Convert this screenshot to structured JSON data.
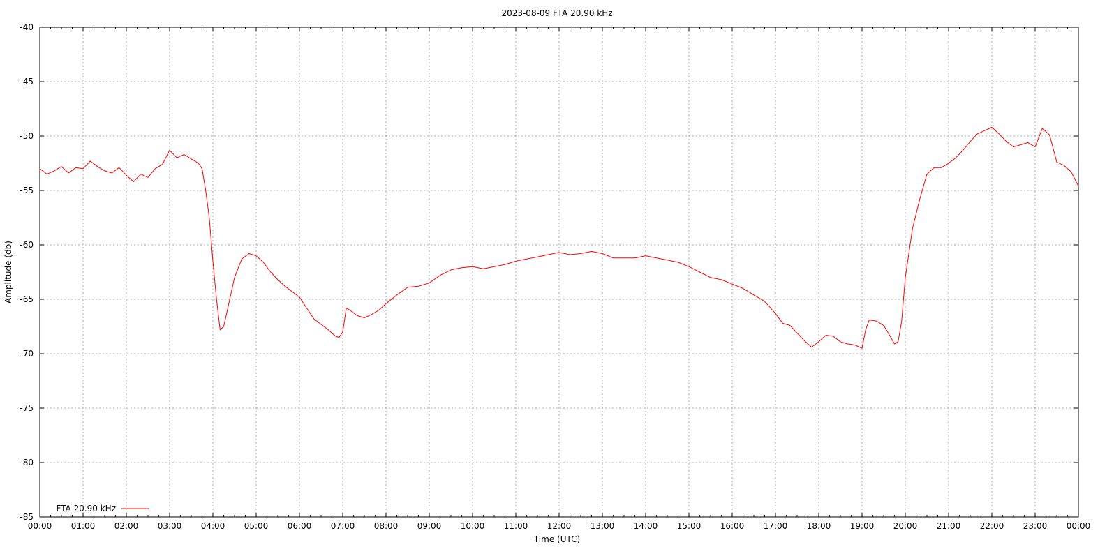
{
  "chart_data": {
    "type": "line",
    "title": "2023-08-09 FTA 20.90 kHz",
    "xlabel": "Time (UTC)",
    "ylabel": "Amplitude (db)",
    "xlim": [
      0,
      24
    ],
    "ylim": [
      -85,
      -40
    ],
    "grid": true,
    "legend_position": "bottom-left",
    "x_tick_labels": [
      "00:00",
      "01:00",
      "02:00",
      "03:00",
      "04:00",
      "05:00",
      "06:00",
      "07:00",
      "08:00",
      "09:00",
      "10:00",
      "11:00",
      "12:00",
      "13:00",
      "14:00",
      "15:00",
      "16:00",
      "17:00",
      "18:00",
      "19:00",
      "20:00",
      "21:00",
      "22:00",
      "23:00",
      "00:00"
    ],
    "y_ticks": [
      -40,
      -45,
      -50,
      -55,
      -60,
      -65,
      -70,
      -75,
      -80,
      -85
    ],
    "series": [
      {
        "name": "FTA 20.90 kHz",
        "color": "#ff0000",
        "x": [
          "00:00",
          "00:10",
          "00:20",
          "00:30",
          "00:40",
          "00:50",
          "01:00",
          "01:10",
          "01:20",
          "01:30",
          "01:40",
          "01:50",
          "02:00",
          "02:10",
          "02:20",
          "02:30",
          "02:40",
          "02:50",
          "03:00",
          "03:10",
          "03:20",
          "03:30",
          "03:40",
          "03:45",
          "03:50",
          "03:55",
          "04:00",
          "04:05",
          "04:10",
          "04:15",
          "04:20",
          "04:30",
          "04:40",
          "04:50",
          "05:00",
          "05:10",
          "05:20",
          "05:30",
          "05:40",
          "06:00",
          "06:10",
          "06:20",
          "06:30",
          "06:40",
          "06:50",
          "06:55",
          "07:00",
          "07:05",
          "07:10",
          "07:20",
          "07:30",
          "07:40",
          "07:50",
          "08:00",
          "08:15",
          "08:30",
          "08:45",
          "09:00",
          "09:15",
          "09:30",
          "09:45",
          "10:00",
          "10:15",
          "10:30",
          "10:45",
          "11:00",
          "11:15",
          "11:30",
          "11:45",
          "12:00",
          "12:15",
          "12:30",
          "12:45",
          "13:00",
          "13:15",
          "13:30",
          "13:45",
          "14:00",
          "14:15",
          "14:30",
          "14:45",
          "15:00",
          "15:15",
          "15:30",
          "15:45",
          "16:00",
          "16:15",
          "16:30",
          "16:45",
          "17:00",
          "17:10",
          "17:20",
          "17:30",
          "17:40",
          "17:50",
          "18:00",
          "18:10",
          "18:20",
          "18:30",
          "18:40",
          "18:50",
          "19:00",
          "19:05",
          "19:10",
          "19:20",
          "19:30",
          "19:40",
          "19:45",
          "19:50",
          "19:55",
          "20:00",
          "20:10",
          "20:20",
          "20:30",
          "20:40",
          "20:50",
          "21:00",
          "21:10",
          "21:20",
          "21:30",
          "21:40",
          "21:50",
          "22:00",
          "22:10",
          "22:20",
          "22:30",
          "22:40",
          "22:50",
          "23:00",
          "23:10",
          "23:20",
          "23:30",
          "23:40",
          "23:50",
          "24:00"
        ],
        "values": [
          -53.0,
          -53.5,
          -53.2,
          -52.8,
          -53.4,
          -52.9,
          -53.0,
          -52.3,
          -52.8,
          -53.2,
          -53.4,
          -52.9,
          -53.6,
          -54.2,
          -53.5,
          -53.8,
          -53.0,
          -52.6,
          -51.3,
          -52.0,
          -51.7,
          -52.1,
          -52.5,
          -53.0,
          -55.0,
          -57.5,
          -61.5,
          -65.0,
          -67.8,
          -67.5,
          -66.0,
          -63.0,
          -61.3,
          -60.8,
          -61.0,
          -61.6,
          -62.5,
          -63.2,
          -63.8,
          -64.8,
          -65.8,
          -66.8,
          -67.3,
          -67.8,
          -68.4,
          -68.5,
          -68.0,
          -65.8,
          -66.0,
          -66.5,
          -66.7,
          -66.4,
          -66.0,
          -65.4,
          -64.6,
          -63.9,
          -63.8,
          -63.5,
          -62.8,
          -62.3,
          -62.1,
          -62.0,
          -62.2,
          -62.0,
          -61.8,
          -61.5,
          -61.3,
          -61.1,
          -60.9,
          -60.7,
          -60.9,
          -60.8,
          -60.6,
          -60.8,
          -61.2,
          -61.2,
          -61.2,
          -61.0,
          -61.2,
          -61.4,
          -61.6,
          -62.0,
          -62.5,
          -63.0,
          -63.2,
          -63.6,
          -64.0,
          -64.6,
          -65.2,
          -66.3,
          -67.2,
          -67.4,
          -68.1,
          -68.8,
          -69.4,
          -68.9,
          -68.3,
          -68.4,
          -68.9,
          -69.1,
          -69.2,
          -69.5,
          -67.8,
          -66.9,
          -67.0,
          -67.4,
          -68.5,
          -69.1,
          -68.9,
          -67.0,
          -63.0,
          -58.5,
          -55.8,
          -53.5,
          -52.9,
          -52.9,
          -52.5,
          -52.0,
          -51.3,
          -50.5,
          -49.8,
          -49.5,
          -49.2,
          -49.8,
          -50.5,
          -51.0,
          -50.8,
          -50.6,
          -51.0,
          -49.3,
          -49.9,
          -52.4,
          -52.7,
          -53.3,
          -54.6
        ]
      }
    ]
  }
}
